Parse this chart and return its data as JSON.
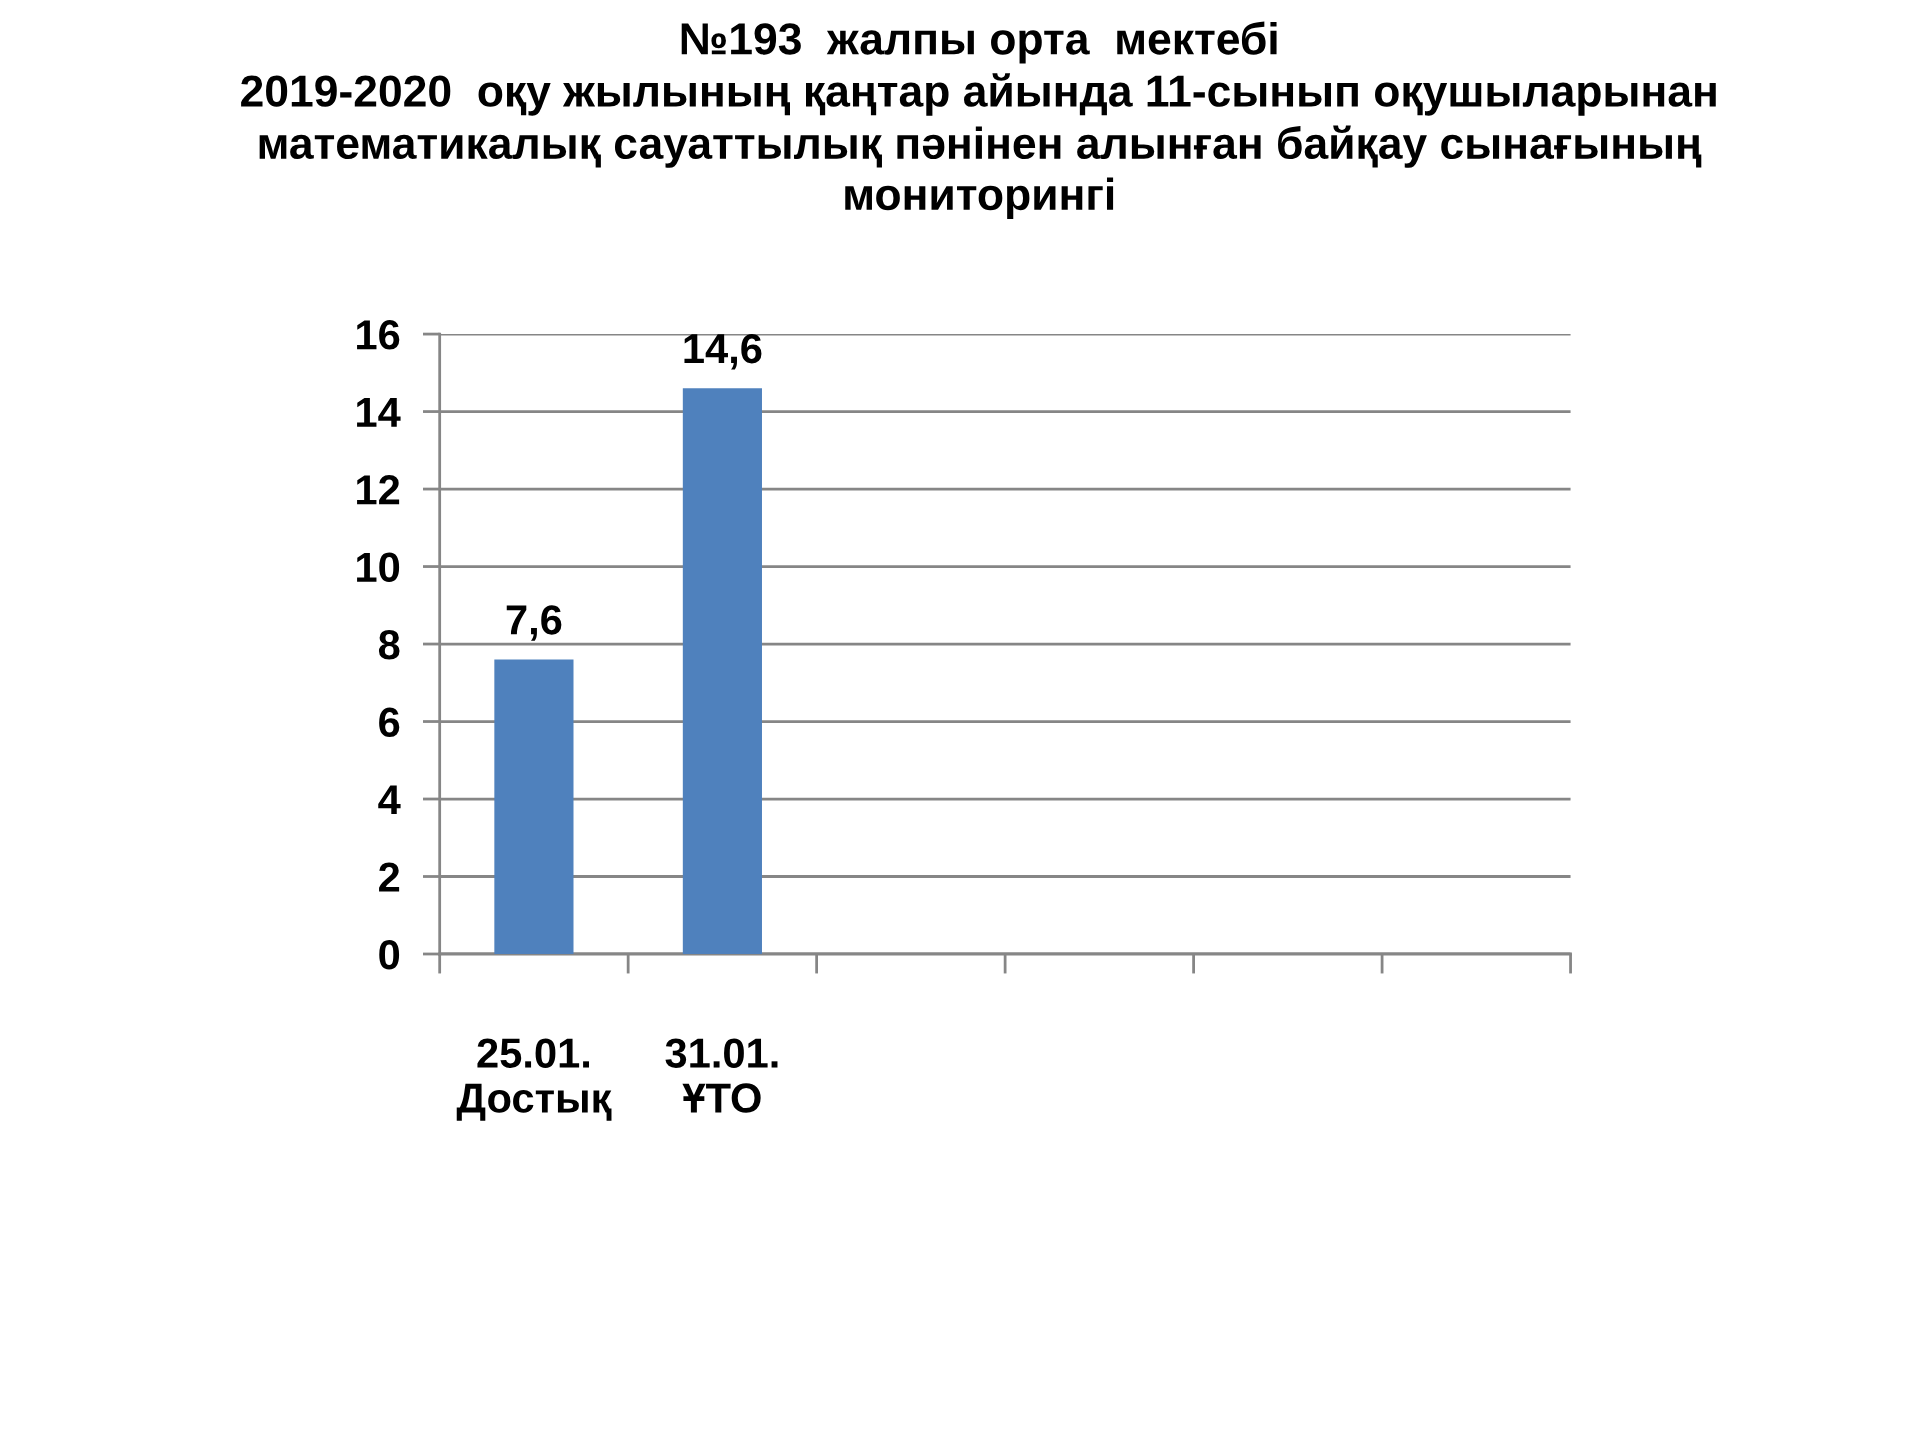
{
  "chart_data": {
    "type": "bar",
    "title": "№193  жалпы орта  мектебі\n2019-2020  оқу жылының қаңтар айында 11-сынып оқушыларынан\nматематикалық сауаттылық пәнінен алынған байқау сынағының\nмониторингі",
    "categories": [
      "25.01.\nДостық",
      "31.01.\nҰТО",
      null,
      null,
      null,
      null
    ],
    "values": [
      7.6,
      14.6,
      null,
      null,
      null,
      null
    ],
    "value_labels": [
      "7,6",
      "14,6",
      null,
      null,
      null,
      null
    ],
    "color": "#4f81bd",
    "ylim": [
      0,
      16
    ],
    "yticks": [
      0,
      2,
      4,
      6,
      8,
      10,
      12,
      14,
      16
    ],
    "grid": "y"
  }
}
